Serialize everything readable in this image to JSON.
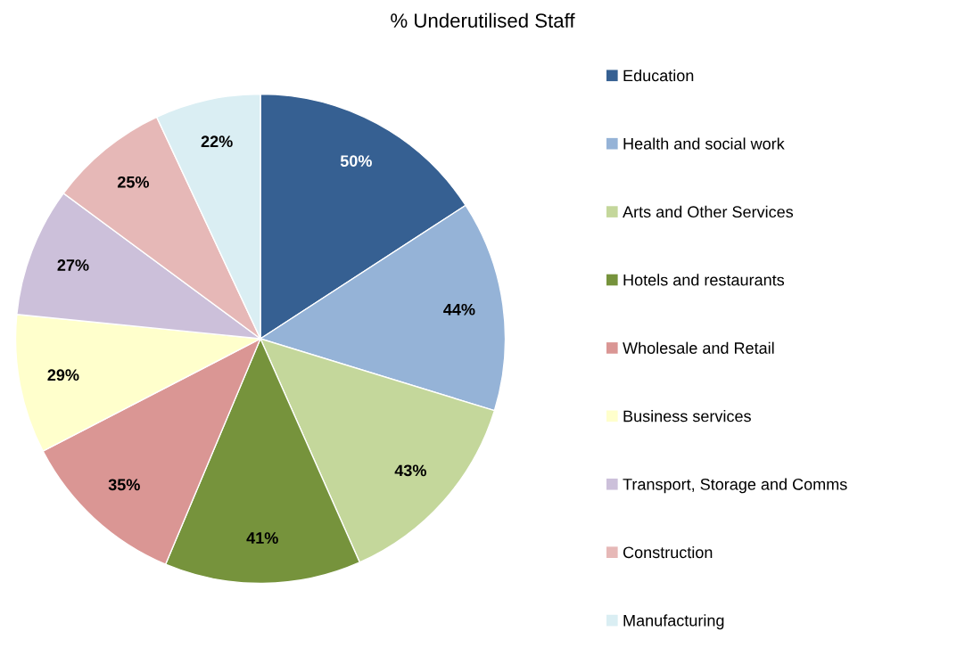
{
  "chart_data": {
    "type": "pie",
    "title": "% Underutilised Staff",
    "categories": [
      "Education",
      "Health and social work",
      "Arts and Other Services",
      "Hotels and restaurants",
      "Wholesale and Retail",
      "Business services",
      "Transport, Storage and Comms",
      "Construction",
      "Manufacturing"
    ],
    "values": [
      50,
      44,
      43,
      41,
      35,
      29,
      27,
      25,
      22
    ],
    "value_labels": [
      "50%",
      "44%",
      "43%",
      "41%",
      "35%",
      "29%",
      "27%",
      "25%",
      "22%"
    ],
    "colors": [
      "#366092",
      "#95b3d7",
      "#c4d79b",
      "#76933c",
      "#da9694",
      "#ffffcc",
      "#ccc0da",
      "#e6b8b7",
      "#daeef3"
    ],
    "legend": "right"
  }
}
